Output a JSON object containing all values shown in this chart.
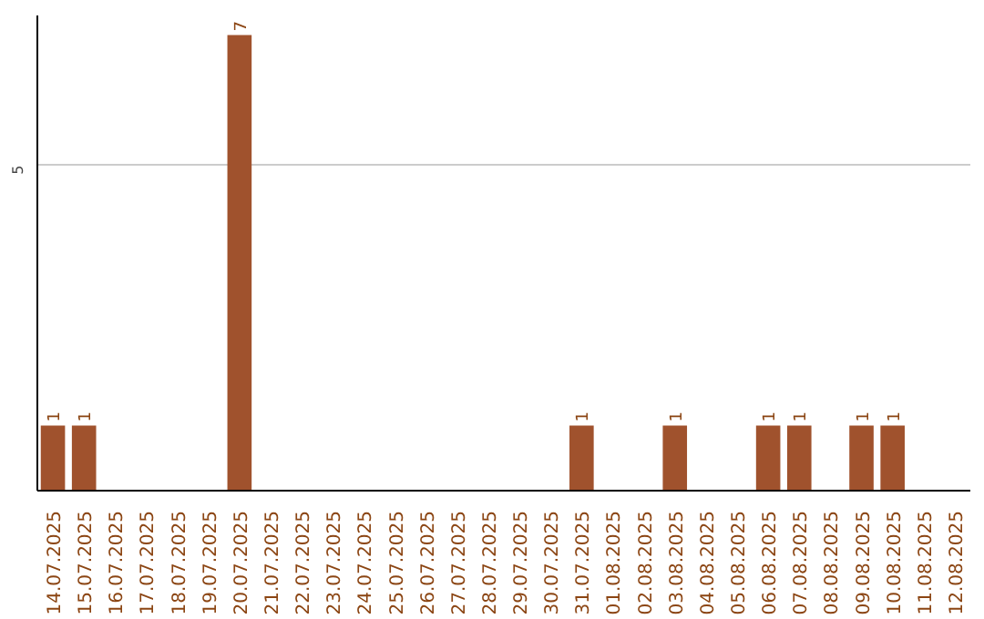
{
  "chart_data": {
    "type": "bar",
    "categories": [
      "14.07.2025",
      "15.07.2025",
      "16.07.2025",
      "17.07.2025",
      "18.07.2025",
      "19.07.2025",
      "20.07.2025",
      "21.07.2025",
      "22.07.2025",
      "23.07.2025",
      "24.07.2025",
      "25.07.2025",
      "26.07.2025",
      "27.07.2025",
      "28.07.2025",
      "29.07.2025",
      "30.07.2025",
      "31.07.2025",
      "01.08.2025",
      "02.08.2025",
      "03.08.2025",
      "04.08.2025",
      "05.08.2025",
      "06.08.2025",
      "07.08.2025",
      "08.08.2025",
      "09.08.2025",
      "10.08.2025",
      "11.08.2025",
      "12.08.2025"
    ],
    "values": [
      1,
      1,
      0,
      0,
      0,
      0,
      7,
      0,
      0,
      0,
      0,
      0,
      0,
      0,
      0,
      0,
      0,
      1,
      0,
      0,
      1,
      0,
      0,
      1,
      1,
      0,
      1,
      1,
      0,
      0
    ],
    "value_labels": [
      "1",
      "1",
      null,
      null,
      null,
      null,
      "7",
      null,
      null,
      null,
      null,
      null,
      null,
      null,
      null,
      null,
      null,
      "1",
      null,
      null,
      "1",
      null,
      null,
      "1",
      "1",
      null,
      "1",
      "1",
      null,
      null
    ],
    "color": "#a0522d",
    "ylim": [
      0,
      7.3
    ],
    "yticks": [
      5
    ],
    "grid": "y"
  }
}
